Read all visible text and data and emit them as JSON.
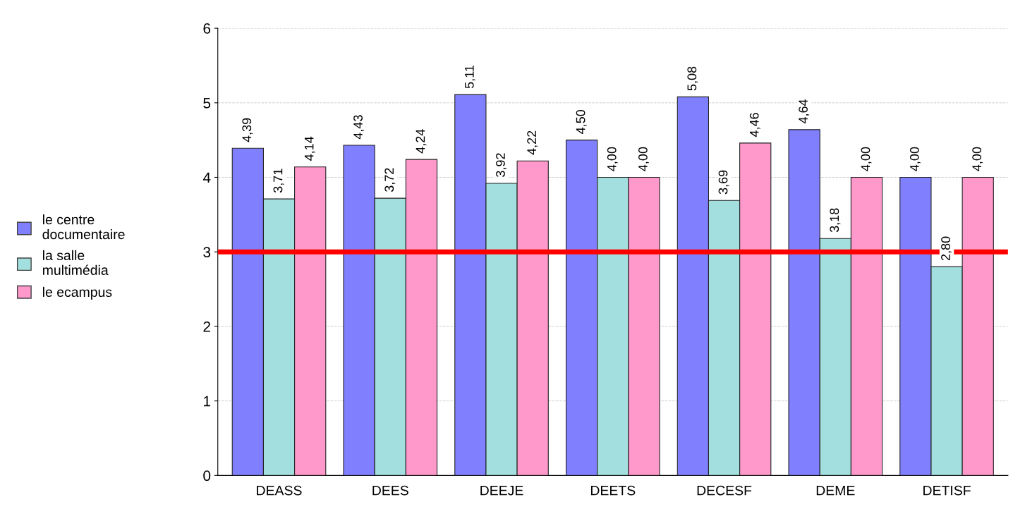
{
  "chart_data": {
    "type": "bar",
    "categories": [
      "DEASS",
      "DEES",
      "DEEJE",
      "DEETS",
      "DECESF",
      "DEME",
      "DETISF"
    ],
    "series": [
      {
        "name": "le centre\ndocumentaire",
        "color": "#8080ff",
        "values": [
          4.39,
          4.43,
          5.11,
          4.5,
          5.08,
          4.64,
          4.0
        ],
        "value_labels": [
          "4,39",
          "4,43",
          "5,11",
          "4,50",
          "5,08",
          "4,64",
          "4,00"
        ]
      },
      {
        "name": "la salle\nmultimédia",
        "color": "#a3dfdf",
        "values": [
          3.71,
          3.72,
          3.92,
          4.0,
          3.69,
          3.18,
          2.8
        ],
        "value_labels": [
          "3,71",
          "3,72",
          "3,92",
          "4,00",
          "3,69",
          "3,18",
          "2,80"
        ]
      },
      {
        "name": "le ecampus",
        "color": "#ff99cc",
        "values": [
          4.14,
          4.24,
          4.22,
          4.0,
          4.46,
          4.0,
          4.0
        ],
        "value_labels": [
          "4,14",
          "4,24",
          "4,22",
          "4,00",
          "4,46",
          "4,00",
          "4,00"
        ]
      }
    ],
    "ylim": [
      0,
      6
    ],
    "yticks": [
      0,
      1,
      2,
      3,
      4,
      5,
      6
    ],
    "grid": "y",
    "legend": "left",
    "ref_lines": [
      {
        "axis": "y",
        "value": 3,
        "color": "#ff0000"
      }
    ]
  }
}
